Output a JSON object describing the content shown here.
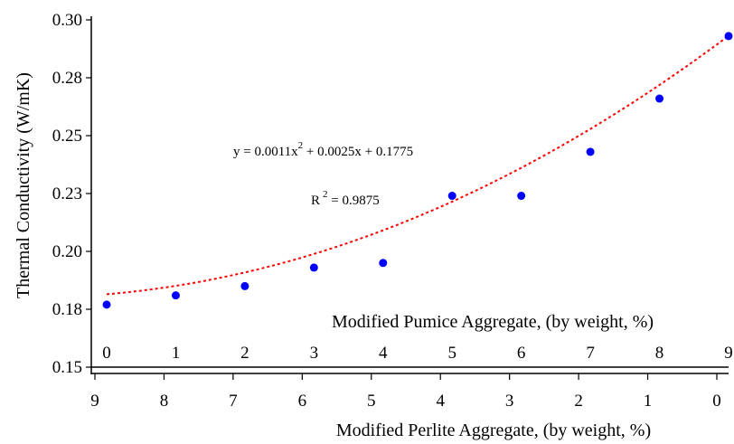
{
  "chart_data": {
    "type": "scatter",
    "y_axis": {
      "label": "Thermal Conductivity (W/mK)",
      "ticks": [
        "0.15",
        "0.18",
        "0.20",
        "0.23",
        "0.25",
        "0.28",
        "0.30"
      ],
      "range": [
        0.15,
        0.3
      ]
    },
    "x_axis_top": {
      "label": "Modified Pumice Aggregate, (by weight, %)",
      "ticks": [
        "0",
        "1",
        "2",
        "3",
        "4",
        "5",
        "6",
        "7",
        "8",
        "9"
      ]
    },
    "x_axis_bottom": {
      "label": "Modified Perlite Aggregate, (by weight, %)",
      "ticks": [
        "9",
        "8",
        "7",
        "6",
        "5",
        "4",
        "3",
        "2",
        "1",
        "0"
      ]
    },
    "x_range": [
      0,
      9
    ],
    "series": [
      {
        "x": [
          0,
          1,
          2,
          3,
          4,
          5,
          6,
          7,
          8,
          9
        ],
        "y": [
          0.177,
          0.181,
          0.185,
          0.193,
          0.195,
          0.224,
          0.224,
          0.243,
          0.266,
          0.293
        ],
        "color": "#0000ff"
      }
    ],
    "trendline": {
      "type": "polynomial",
      "coefficients": [
        0.0011,
        0.0025,
        0.1775
      ],
      "color": "#ff0000",
      "style": "dotted"
    },
    "annotations": {
      "equation": {
        "pre": "y = 0.0011x",
        "exp": "2",
        "post": " + 0.0025x + 0.1775"
      },
      "r2": {
        "pre": "R",
        "exp": "2",
        "post": "  = 0.9875"
      }
    },
    "grid": false
  }
}
